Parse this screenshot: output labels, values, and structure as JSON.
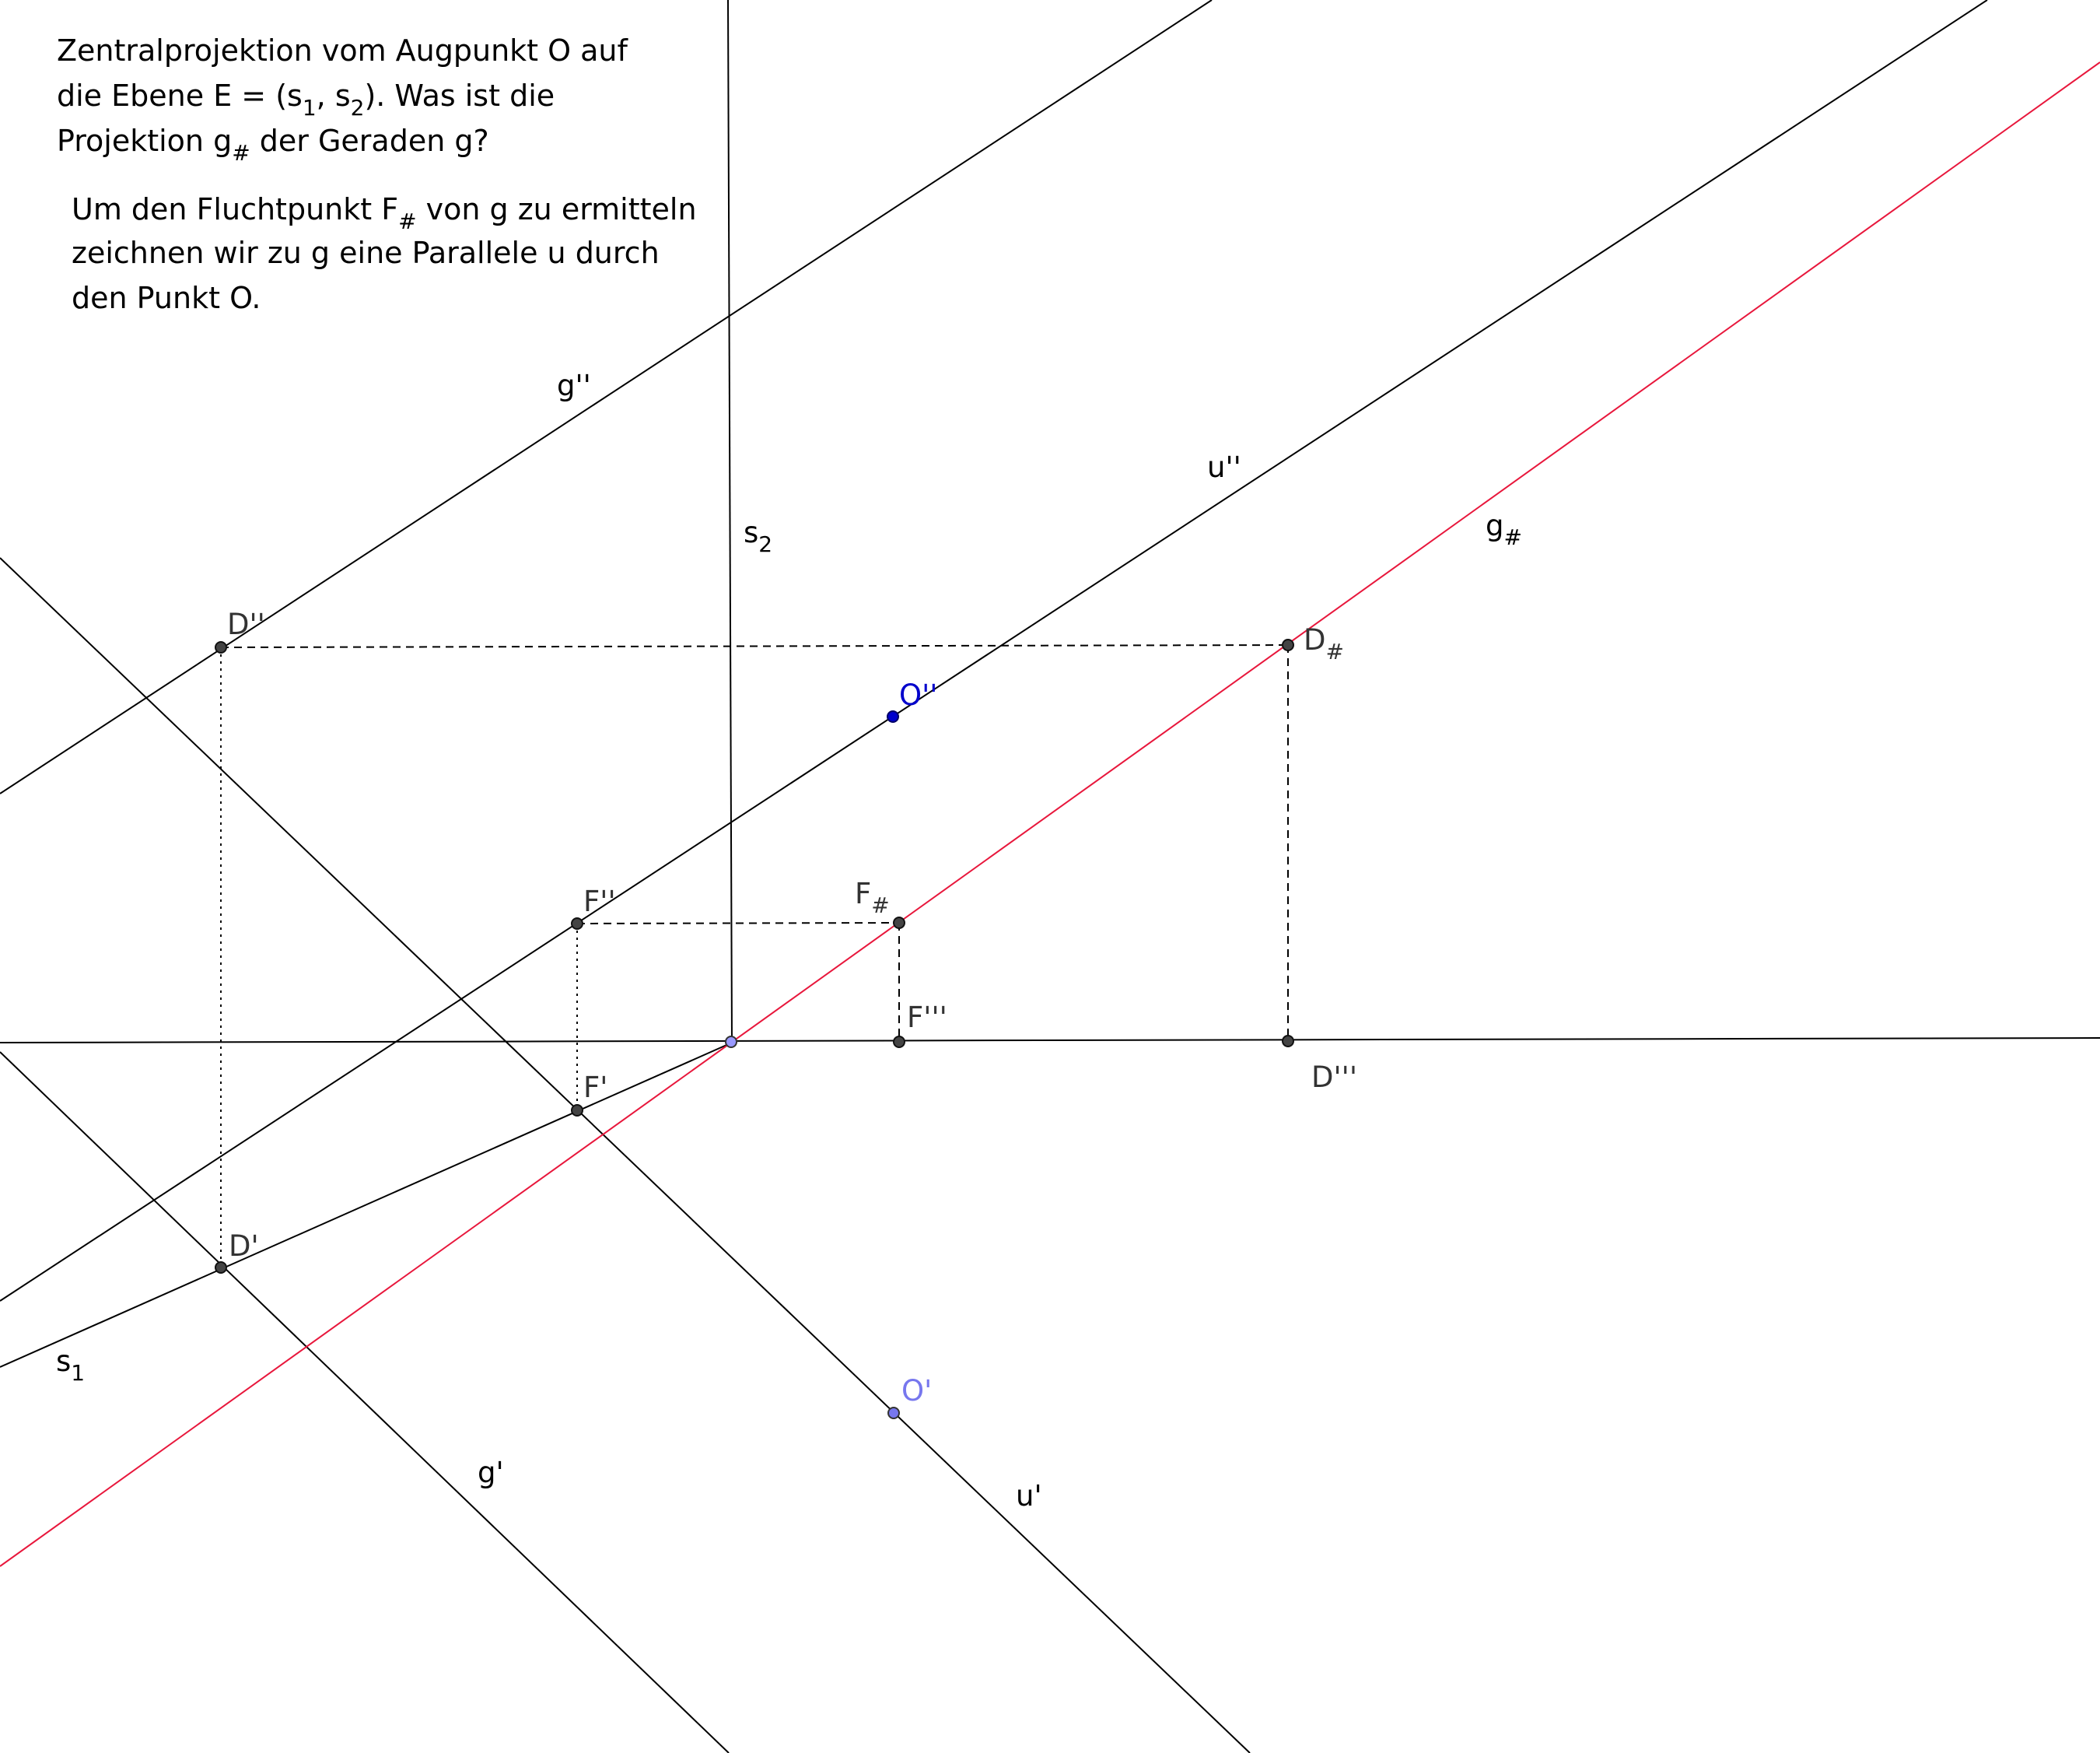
{
  "text": {
    "line1": "Zentralprojektion vom Augpunkt O auf",
    "line2_a": "die Ebene E = (s",
    "line2_sub1": "1",
    "line2_b": ", s",
    "line2_sub2": "2",
    "line2_c": "). Was ist die",
    "line3_a": "Projektion g",
    "line3_sub": "#",
    "line3_b": " der Geraden g?",
    "line4_a": "Um den Fluchtpunkt F",
    "line4_sub": "#",
    "line4_b": " von g zu ermitteln",
    "line5": "zeichnen wir zu g eine Parallele u durch",
    "line6": "den Punkt O."
  },
  "labels": {
    "g2": "g''",
    "u2": "u''",
    "s2_main": "s",
    "s2_sub": "2",
    "gh_main": "g",
    "gh_sub": "#",
    "s1_main": "s",
    "s1_sub": "1",
    "g1": "g'",
    "u1": "u'",
    "D2": "D''",
    "Dh_main": "D",
    "Dh_sub": "#",
    "O2": "O''",
    "F2": "F''",
    "Fh_main": "F",
    "Fh_sub": "#",
    "F3": "F'''",
    "D3": "D'''",
    "F1": "F'",
    "D1": "D'",
    "O1": "O'"
  },
  "colors": {
    "line": "#000000",
    "projection": "#e8173c",
    "point": "#444444",
    "label": "#333333",
    "O2": "#0000cc",
    "O1": "#7777ee",
    "origin": "#9999ff"
  }
}
